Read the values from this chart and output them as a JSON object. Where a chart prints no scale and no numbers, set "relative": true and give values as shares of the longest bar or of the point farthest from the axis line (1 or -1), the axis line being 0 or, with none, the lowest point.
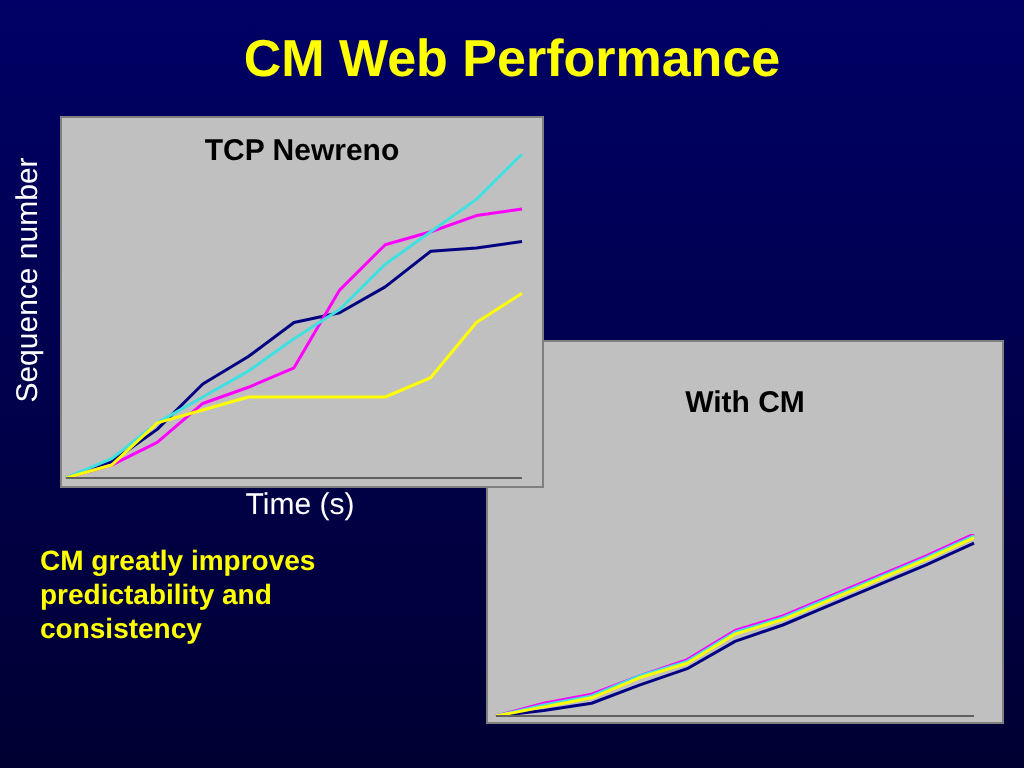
{
  "chart_data": [
    {
      "type": "line",
      "title": "CM Web Performance",
      "subtitle": "TCP Newreno",
      "xlabel": "Time (s)",
      "ylabel": "Sequence number",
      "relative": true,
      "marker": "none",
      "grid": false,
      "legend": false,
      "annotations": [
        "CM greatly improves predictability and consistency"
      ],
      "categories": [
        null,
        null,
        null,
        null,
        null,
        null,
        null,
        null,
        null,
        null,
        null
      ],
      "series": [
        {
          "color": "#000080",
          "values": [
            0,
            0.05,
            0.15,
            0.29,
            0.375,
            0.48,
            0.51,
            0.59,
            0.7,
            0.71,
            0.73
          ]
        },
        {
          "color": "#ff00ff",
          "values": [
            0,
            0.04,
            0.11,
            0.23,
            0.28,
            0.34,
            0.58,
            0.72,
            0.76,
            0.81,
            0.83
          ]
        },
        {
          "color": "#40e0e0",
          "values": [
            0,
            0.06,
            0.17,
            0.25,
            0.33,
            0.43,
            0.52,
            0.66,
            0.76,
            0.86,
            1
          ]
        },
        {
          "color": "#ffff00",
          "values": [
            0,
            0.04,
            0.17,
            0.21,
            0.25,
            0.25,
            0.25,
            0.25,
            0.31,
            0.48,
            0.57
          ]
        }
      ]
    },
    {
      "type": "line",
      "subtitle": "With CM",
      "relative": true,
      "marker": "none",
      "grid": false,
      "legend": false,
      "categories": [
        null,
        null,
        null,
        null,
        null,
        null,
        null,
        null,
        null,
        null,
        null
      ],
      "series": [
        {
          "color": "#000080",
          "values": [
            0,
            0.03,
            0.07,
            0.17,
            0.26,
            0.41,
            0.5,
            0.61,
            0.72,
            0.83,
            0.95
          ]
        },
        {
          "color": "#ff00ff",
          "values": [
            0,
            0.07,
            0.12,
            0.22,
            0.31,
            0.47,
            0.55,
            0.66,
            0.77,
            0.88,
            1
          ]
        },
        {
          "color": "#40e0e0",
          "values": [
            0,
            0.06,
            0.11,
            0.22,
            0.3,
            0.46,
            0.54,
            0.65,
            0.76,
            0.87,
            0.99
          ]
        },
        {
          "color": "#ffff00",
          "values": [
            0,
            0.05,
            0.1,
            0.21,
            0.29,
            0.45,
            0.53,
            0.64,
            0.75,
            0.86,
            0.98
          ]
        }
      ]
    }
  ]
}
